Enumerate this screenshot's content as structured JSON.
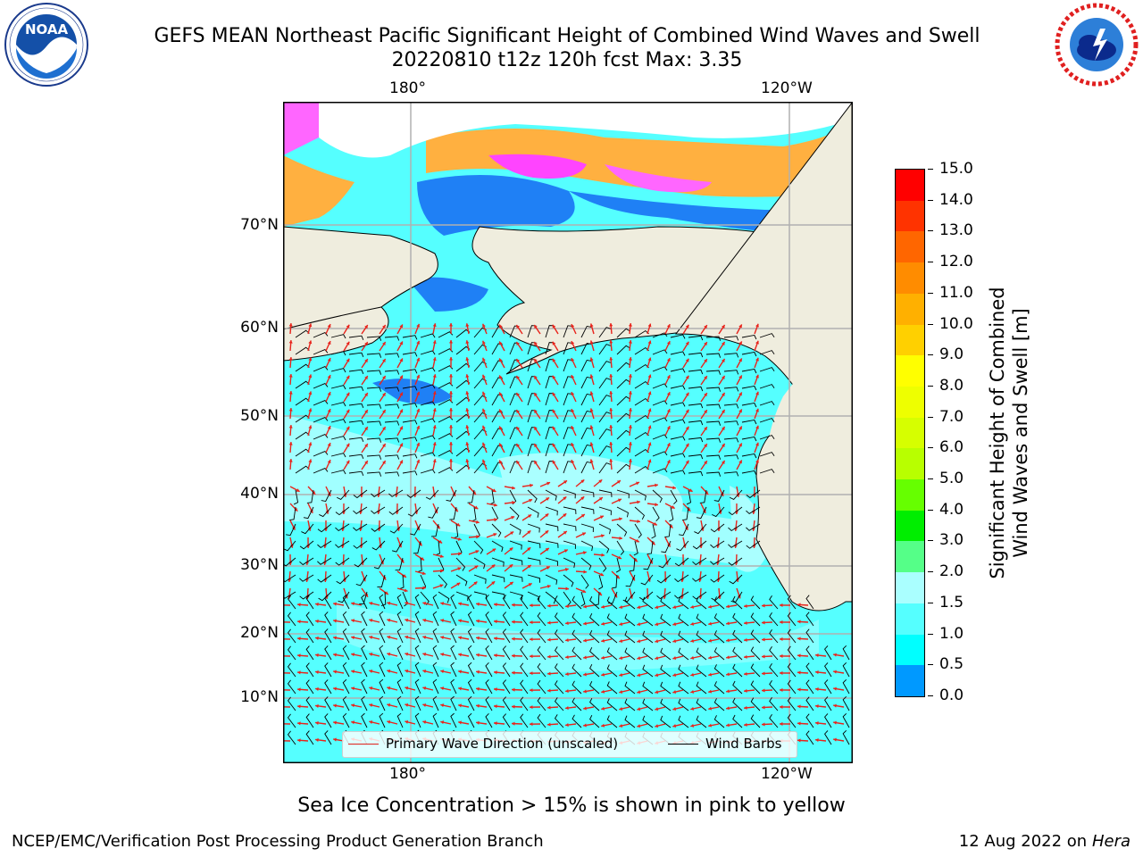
{
  "header": {
    "title_line1": "GEFS MEAN Northeast Pacific Significant Height of Combined Wind Waves and Swell",
    "title_line2": "20220810 t12z 120h fcst   Max: 3.35"
  },
  "logos": {
    "left": {
      "name": "noaa-logo",
      "text": "NOAA",
      "ring_text": "NATIONAL OCEANIC AND ATMOSPHERIC ADMINISTRATION · U.S. DEPARTMENT OF COMMERCE"
    },
    "right": {
      "name": "nws-logo",
      "ring_text": "NATIONAL WEATHER SERVICE"
    }
  },
  "map": {
    "top_lon_labels": [
      "180°",
      "120°W"
    ],
    "bottom_lon_labels": [
      "180°",
      "120°W"
    ],
    "lat_labels": [
      "70°N",
      "60°N",
      "50°N",
      "40°N",
      "30°N",
      "20°N",
      "10°N"
    ],
    "colors": {
      "land": "#efedde",
      "grid": "#b0b0b0",
      "wave_arrow": "#e8231b",
      "wind_barb": "#000000"
    }
  },
  "legend": {
    "wave_label": "Primary Wave Direction (unscaled)",
    "wind_label": "Wind Barbs",
    "wave_color": "#e0201a",
    "wind_color": "#000000"
  },
  "colorbar": {
    "label_line1": "Significant Height of Combined",
    "label_line2": "Wind Waves and Swell [m]",
    "ticks": [
      "15.0",
      "14.0",
      "13.0",
      "12.0",
      "11.0",
      "10.0",
      "9.0",
      "8.0",
      "7.0",
      "6.0",
      "5.0",
      "4.0",
      "3.0",
      "2.0",
      "1.5",
      "1.0",
      "0.5",
      "0.0"
    ],
    "colors": [
      "#ff0000",
      "#ff3300",
      "#ff6600",
      "#ff8c00",
      "#ffb000",
      "#ffd000",
      "#ffff00",
      "#eeff00",
      "#d6ff00",
      "#b8ff00",
      "#66ff00",
      "#00ee00",
      "#55ff88",
      "#aaffff",
      "#55ffff",
      "#00ffff",
      "#0099ff",
      "#0066ff",
      "#0000ff"
    ]
  },
  "notes": {
    "sea_ice": "Sea Ice Concentration > 15% is shown in pink to yellow"
  },
  "footer": {
    "left": "NCEP/EMC/Verification Post Processing Product Generation Branch",
    "right_date": "12 Aug 2022 on",
    "right_host": "Hera"
  }
}
